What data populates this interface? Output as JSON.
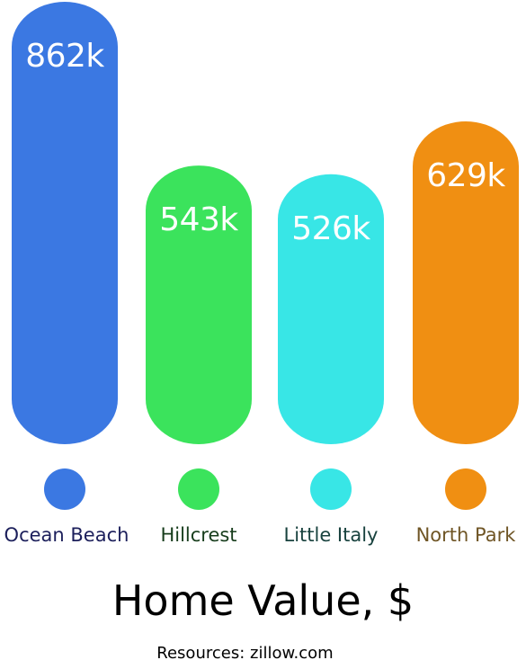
{
  "chart_data": {
    "type": "bar",
    "categories": [
      "Ocean Beach",
      "Hillcrest",
      "Little Italy",
      "North Park"
    ],
    "values": [
      862,
      543,
      526,
      629
    ],
    "value_labels": [
      "862k",
      "543k",
      "526k",
      "629k"
    ],
    "colors": [
      "#3b78e2",
      "#3be35c",
      "#38e6e6",
      "#f08f12"
    ],
    "label_colors": [
      "#1c1f5b",
      "#173d1c",
      "#18423e",
      "#6f5525"
    ],
    "title": "Home Value, $",
    "source": "Resources: zillow.com",
    "legend": "none",
    "grid": false
  }
}
